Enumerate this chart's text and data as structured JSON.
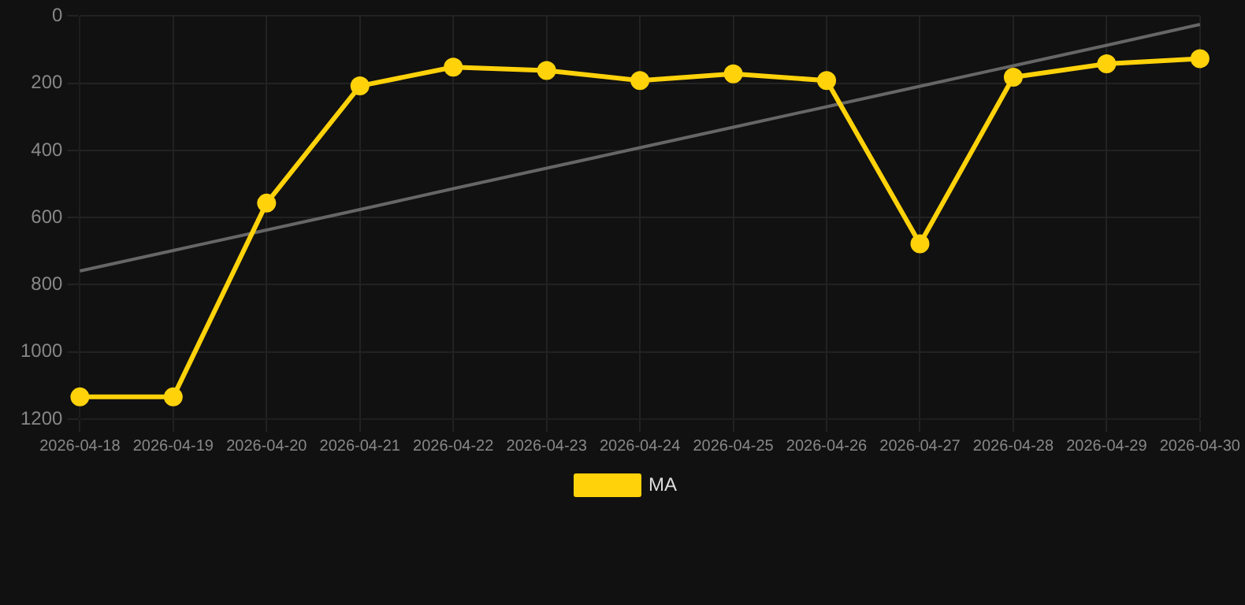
{
  "chart_data": {
    "type": "line",
    "categories": [
      "2026-04-18",
      "2026-04-19",
      "2026-04-20",
      "2026-04-21",
      "2026-04-22",
      "2026-04-23",
      "2026-04-24",
      "2026-04-25",
      "2026-04-26",
      "2026-04-27",
      "2026-04-28",
      "2026-04-29",
      "2026-04-30"
    ],
    "series": [
      {
        "name": "MA",
        "color": "#ffd20a",
        "values": [
          1134,
          1134,
          557,
          208,
          152,
          162,
          192,
          172,
          192,
          678,
          182,
          142,
          127
        ]
      },
      {
        "type": "line",
        "color": "#666666",
        "values": [
          759,
          698,
          637,
          576,
          514,
          453,
          392,
          331,
          270,
          209,
          148,
          87,
          25
        ],
        "marker": "none"
      }
    ],
    "ylim": [
      1200,
      0
    ],
    "yticks": [
      0,
      200,
      400,
      600,
      800,
      1000,
      1200
    ],
    "grid": true,
    "legend": "bottom",
    "marker": "circle",
    "line_style": "solid"
  }
}
